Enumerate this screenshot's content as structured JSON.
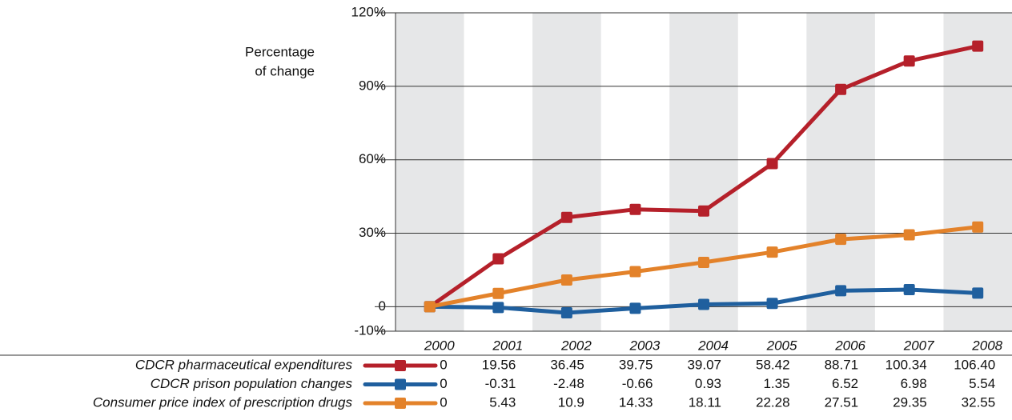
{
  "chart_data": {
    "type": "line",
    "y_label": [
      "Percentage",
      "of change"
    ],
    "categories": [
      "2000",
      "2001",
      "2002",
      "2003",
      "2004",
      "2005",
      "2006",
      "2007",
      "2008"
    ],
    "series": [
      {
        "name": "CDCR pharmaceutical expenditures",
        "color": "#b5202a",
        "values": [
          0,
          19.56,
          36.45,
          39.75,
          39.07,
          58.42,
          88.71,
          100.34,
          106.4
        ],
        "value_labels": [
          "0",
          "19.56",
          "36.45",
          "39.75",
          "39.07",
          "58.42",
          "88.71",
          "100.34",
          "106.40"
        ]
      },
      {
        "name": "CDCR prison population changes",
        "color": "#1f5f9e",
        "values": [
          0,
          -0.31,
          -2.48,
          -0.66,
          0.93,
          1.35,
          6.52,
          6.98,
          5.54
        ],
        "value_labels": [
          "0",
          "-0.31",
          "-2.48",
          "-0.66",
          "0.93",
          "1.35",
          "6.52",
          "6.98",
          "5.54"
        ]
      },
      {
        "name": "Consumer price index of prescription drugs",
        "color": "#e3822a",
        "values": [
          0,
          5.43,
          10.9,
          14.33,
          18.11,
          22.28,
          27.51,
          29.35,
          32.55
        ],
        "value_labels": [
          "0",
          "5.43",
          "10.9",
          "14.33",
          "18.11",
          "22.28",
          "27.51",
          "29.35",
          "32.55"
        ]
      }
    ],
    "ylim": [
      -10,
      120
    ],
    "yticks": [
      {
        "value": -10,
        "label": "-10%"
      },
      0,
      {
        "value": 30,
        "label": "30%"
      },
      {
        "value": 60,
        "label": "60%"
      },
      {
        "value": 90,
        "label": "90%"
      },
      {
        "value": 120,
        "label": "120%"
      }
    ],
    "grid": true,
    "band_color": "#e6e7e8"
  }
}
